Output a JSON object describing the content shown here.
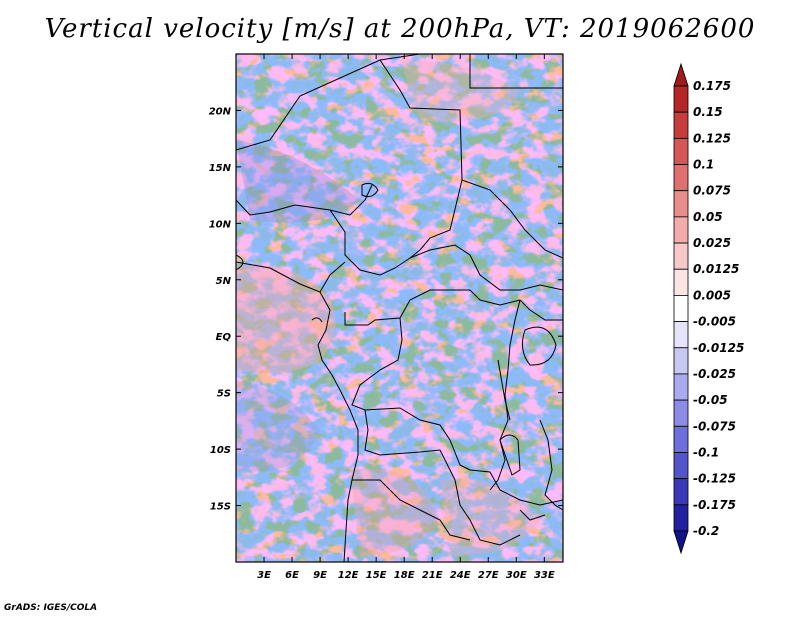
{
  "title": "Vertical velocity [m/s] at 200hPa, VT: 2019062600",
  "credit": "GrADS: IGES/COLA",
  "map": {
    "lon_range_deg": [
      0,
      35
    ],
    "lat_range_deg": [
      -20,
      25
    ],
    "lon_ticks": [
      {
        "value": 3,
        "label": "3E"
      },
      {
        "value": 6,
        "label": "6E"
      },
      {
        "value": 9,
        "label": "9E"
      },
      {
        "value": 12,
        "label": "12E"
      },
      {
        "value": 15,
        "label": "15E"
      },
      {
        "value": 18,
        "label": "18E"
      },
      {
        "value": 21,
        "label": "21E"
      },
      {
        "value": 24,
        "label": "24E"
      },
      {
        "value": 27,
        "label": "27E"
      },
      {
        "value": 30,
        "label": "30E"
      },
      {
        "value": 33,
        "label": "33E"
      }
    ],
    "lat_ticks": [
      {
        "value": 20,
        "label": "20N"
      },
      {
        "value": 15,
        "label": "15N"
      },
      {
        "value": 10,
        "label": "10N"
      },
      {
        "value": 5,
        "label": "5N"
      },
      {
        "value": 0,
        "label": "EQ"
      },
      {
        "value": -5,
        "label": "5S"
      },
      {
        "value": -10,
        "label": "10S"
      },
      {
        "value": -15,
        "label": "15S"
      }
    ]
  },
  "colorbar": {
    "labels": [
      "0.175",
      "0.15",
      "0.125",
      "0.1",
      "0.075",
      "0.05",
      "0.025",
      "0.0125",
      "0.005",
      "-0.005",
      "-0.0125",
      "-0.025",
      "-0.05",
      "-0.075",
      "-0.1",
      "-0.125",
      "-0.175",
      "-0.2"
    ],
    "colors": [
      "#9e1b1b",
      "#b52626",
      "#c83c3c",
      "#d55656",
      "#e07070",
      "#e88c8c",
      "#f2acac",
      "#f7c8c8",
      "#fbe4e4",
      "#ffffff",
      "#e4e4fb",
      "#c8c8f4",
      "#aaaaee",
      "#8c8ce6",
      "#6e6edc",
      "#5454cc",
      "#3a3ab8",
      "#2020a0",
      "#12128a"
    ]
  }
}
